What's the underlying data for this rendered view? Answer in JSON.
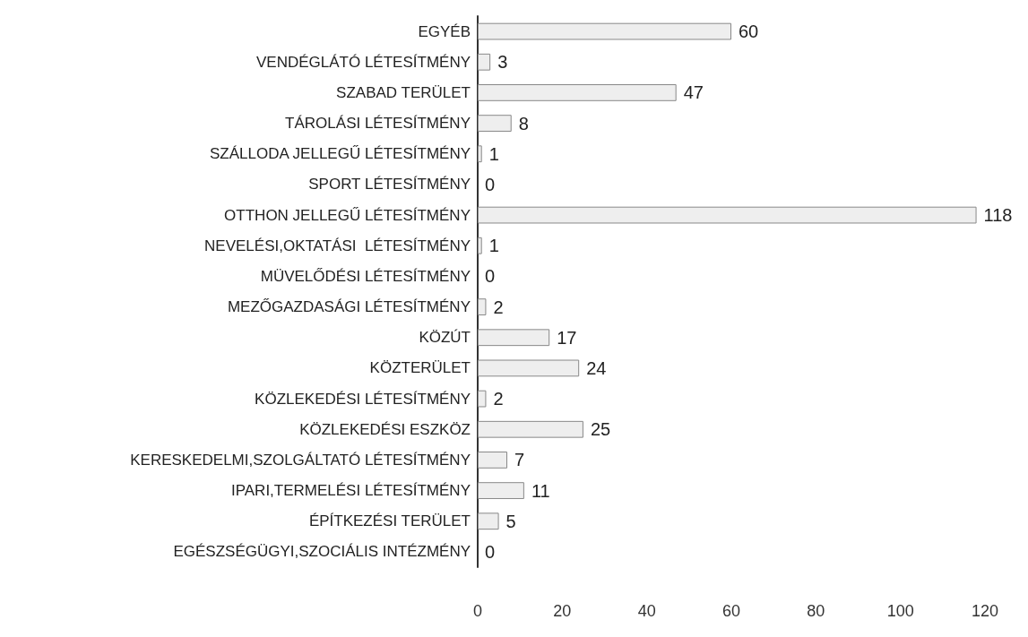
{
  "chart_data": {
    "type": "bar",
    "orientation": "horizontal",
    "categories": [
      "EGYÉB",
      "VENDÉGLÁTÓ LÉTESÍTMÉNY",
      "SZABAD TERÜLET",
      "TÁROLÁSI LÉTESÍTMÉNY",
      "SZÁLLODA JELLEGŰ LÉTESÍTMÉNY",
      "SPORT LÉTESÍTMÉNY",
      "OTTHON JELLEGŰ LÉTESÍTMÉNY",
      "NEVELÉSI,OKTATÁSI  LÉTESÍTMÉNY",
      "MÜVELŐDÉSI LÉTESÍTMÉNY",
      "MEZŐGAZDASÁGI LÉTESÍTMÉNY",
      "KÖZÚT",
      "KÖZTERÜLET",
      "KÖZLEKEDÉSI LÉTESÍTMÉNY",
      "KÖZLEKEDÉSI ESZKÖZ",
      "KERESKEDELMI,SZOLGÁLTATÓ LÉTESÍTMÉNY",
      "IPARI,TERMELÉSI LÉTESÍTMÉNY",
      "ÉPÍTKEZÉSI TERÜLET",
      "EGÉSZSÉGÜGYI,SZOCIÁLIS INTÉZMÉNY"
    ],
    "values": [
      60,
      3,
      47,
      8,
      1,
      0,
      118,
      1,
      0,
      2,
      17,
      24,
      2,
      25,
      7,
      11,
      5,
      0
    ],
    "color": "#eeeeee",
    "xlim": [
      0,
      120
    ],
    "xticks": [
      0,
      20,
      40,
      60,
      80,
      100,
      120
    ],
    "data_labels": true,
    "grid": false
  }
}
